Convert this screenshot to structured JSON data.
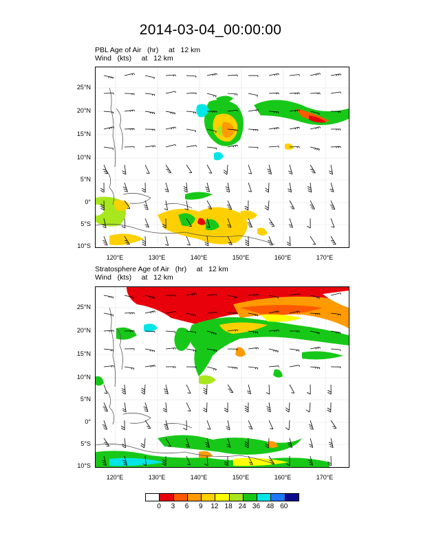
{
  "title": "2014-03-04_00:00:00",
  "panels": [
    {
      "line1": "PBL Age of Air   (hr)     at   12 km",
      "line2": "Wind   (kts)     at   12 km",
      "lat_labels": [
        "25°N",
        "20°N",
        "15°N",
        "10°N",
        "5°N",
        "0°",
        "5°S",
        "10°S"
      ],
      "lon_labels": [
        "120°E",
        "130°E",
        "140°E",
        "150°E",
        "160°E",
        "170°E"
      ]
    },
    {
      "line1": "Stratosphere Age of Air   (hr)     at   12 km",
      "line2": "Wind   (kts)     at   12 km",
      "lat_labels": [
        "25°N",
        "20°N",
        "15°N",
        "10°N",
        "5°N",
        "0°",
        "5°S",
        "10°S"
      ],
      "lon_labels": [
        "120°E",
        "130°E",
        "140°E",
        "150°E",
        "160°E",
        "170°E"
      ]
    }
  ],
  "colorbar": {
    "labels": [
      "0",
      "3",
      "6",
      "9",
      "12",
      "18",
      "24",
      "36",
      "48",
      "60"
    ],
    "colors": [
      "#ffffff",
      "#e8000b",
      "#ff5a00",
      "#ff9a00",
      "#ffd000",
      "#ffff00",
      "#a8e61d",
      "#18c818",
      "#00e6e6",
      "#1e78ff",
      "#0a0a8c"
    ]
  }
}
